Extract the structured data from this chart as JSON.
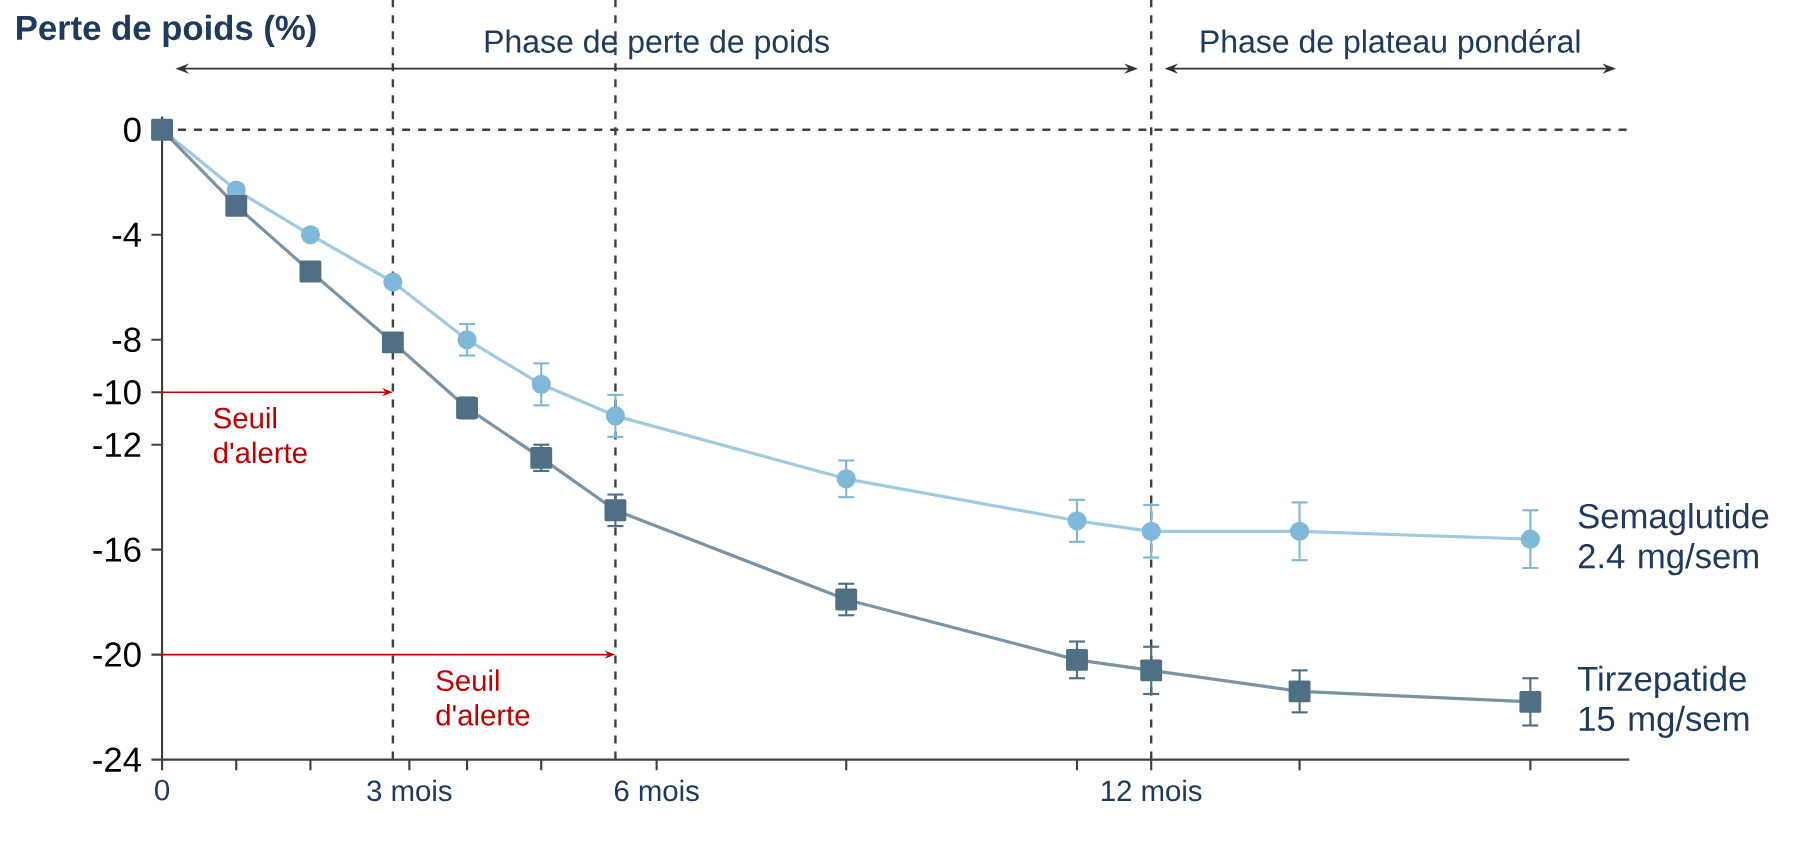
{
  "chart_data": {
    "type": "line",
    "ylabel": "Perte de poids (%)",
    "xlim": [
      0,
      17.8
    ],
    "ylim": [
      -24,
      0.5
    ],
    "xticks": [
      0,
      {
        "value": 0.9,
        "label": null
      },
      {
        "value": 1.8,
        "label": null
      },
      {
        "value": 3,
        "label": "3 mois"
      },
      {
        "value": 3.7,
        "label": null
      },
      {
        "value": 4.6,
        "label": null
      },
      {
        "value": 6,
        "label": "6 mois"
      },
      {
        "value": 8.3,
        "label": null
      },
      {
        "value": 11.1,
        "label": null
      },
      {
        "value": 12,
        "label": "12 mois"
      },
      {
        "value": 13.8,
        "label": null
      },
      {
        "value": 16.6,
        "label": null
      }
    ],
    "yticks": [
      0,
      -4,
      -8,
      -10,
      -12,
      -16,
      -20,
      -24
    ],
    "x": [
      0,
      0.9,
      1.8,
      2.8,
      3.7,
      4.6,
      5.5,
      8.3,
      11.1,
      12,
      13.8,
      16.6
    ],
    "series": [
      {
        "name": "Semaglutide 2.4 mg/sem",
        "color": "#7fb8d8",
        "marker": "circle",
        "values": [
          0,
          -2.3,
          -4.0,
          -5.8,
          -8.0,
          -9.7,
          -10.9,
          -13.3,
          -14.9,
          -15.3,
          -15.3,
          -15.6
        ],
        "errors": [
          null,
          null,
          null,
          null,
          0.6,
          0.8,
          0.8,
          0.7,
          0.8,
          1.0,
          1.1,
          1.1
        ]
      },
      {
        "name": "Tirzepatide 15 mg/sem",
        "color": "#4f6f85",
        "marker": "square",
        "values": [
          0,
          -2.9,
          -5.4,
          -8.1,
          -10.6,
          -12.5,
          -14.5,
          -17.9,
          -20.2,
          -20.6,
          -21.4,
          -21.8
        ],
        "errors": [
          null,
          null,
          null,
          null,
          0.4,
          0.5,
          0.6,
          0.6,
          0.7,
          0.9,
          0.8,
          0.9
        ]
      }
    ],
    "line_style": "solid",
    "ref_lines": [
      {
        "axis": "y",
        "value": 0,
        "line_style": "dashed",
        "color": "#404040"
      },
      {
        "axis": "x",
        "value": 2.8,
        "line_style": "dashed",
        "color": "#404040"
      },
      {
        "axis": "x",
        "value": 5.5,
        "line_style": "dashed",
        "color": "#404040"
      },
      {
        "axis": "x",
        "value": 12,
        "line_style": "dashed",
        "color": "#404040"
      }
    ],
    "annotations": [
      "Phase de perte de poids",
      "Phase de plateau pondéral",
      {
        "text": "Seuil d'alerte",
        "x": 2.8,
        "y": -10
      },
      {
        "text": "Seuil d'alerte",
        "x": 5.5,
        "y": -20
      }
    ]
  }
}
